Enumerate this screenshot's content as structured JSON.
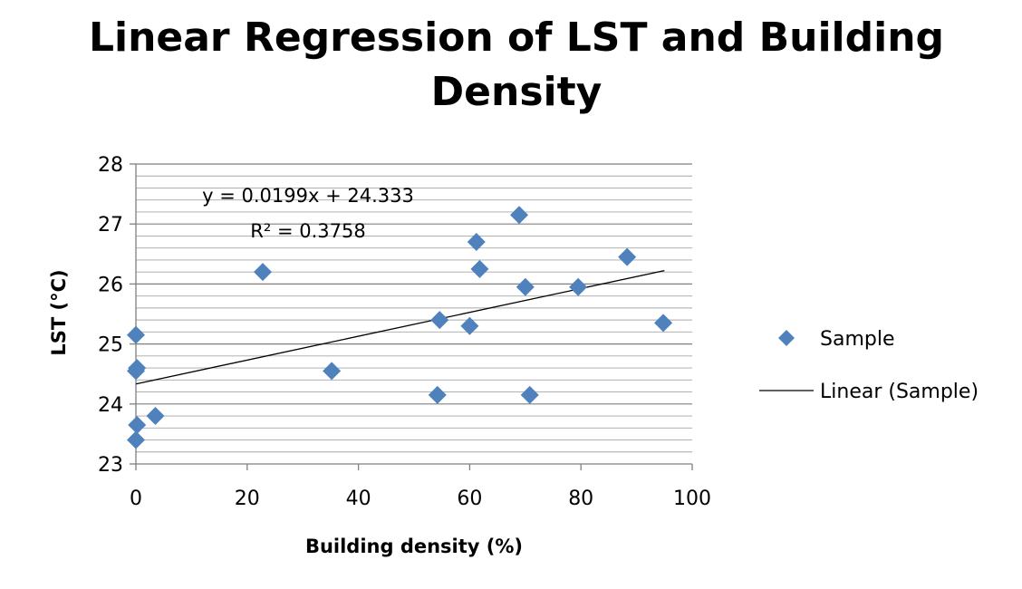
{
  "chart_data": {
    "type": "scatter",
    "title": "Linear Regression of LST and Building Density",
    "xlabel": "Building density (%)",
    "ylabel": "LST (°C)",
    "xlim": [
      0,
      100
    ],
    "ylim": [
      23,
      28
    ],
    "x_ticks": [
      "0",
      "20",
      "40",
      "60",
      "80",
      "100"
    ],
    "y_ticks": [
      "23",
      "24",
      "25",
      "26",
      "27",
      "28"
    ],
    "grid": "horizontal",
    "legend_position": "right",
    "marker_color": "#4f81bd",
    "line_color": "#000000",
    "series": [
      {
        "name": "Sample",
        "points": [
          {
            "x": 0,
            "y": 23.4
          },
          {
            "x": 0.2,
            "y": 23.65
          },
          {
            "x": 0,
            "y": 24.55
          },
          {
            "x": 0.2,
            "y": 24.6
          },
          {
            "x": 0,
            "y": 25.15
          },
          {
            "x": 3.5,
            "y": 23.8
          },
          {
            "x": 22.8,
            "y": 26.2
          },
          {
            "x": 35.2,
            "y": 24.55
          },
          {
            "x": 54.2,
            "y": 24.15
          },
          {
            "x": 54.6,
            "y": 25.4
          },
          {
            "x": 60.0,
            "y": 25.3
          },
          {
            "x": 61.2,
            "y": 26.7
          },
          {
            "x": 61.8,
            "y": 26.25
          },
          {
            "x": 68.9,
            "y": 27.15
          },
          {
            "x": 70.0,
            "y": 25.95
          },
          {
            "x": 70.8,
            "y": 24.15
          },
          {
            "x": 79.5,
            "y": 25.95
          },
          {
            "x": 88.3,
            "y": 26.45
          },
          {
            "x": 94.8,
            "y": 25.35
          }
        ]
      }
    ],
    "trendline": {
      "name": "Linear (Sample)",
      "slope": 0.0199,
      "intercept": 24.333,
      "x_range": [
        0,
        95
      ],
      "equation": "y = 0.0199x + 24.333",
      "r_squared": "R² = 0.3758"
    }
  }
}
